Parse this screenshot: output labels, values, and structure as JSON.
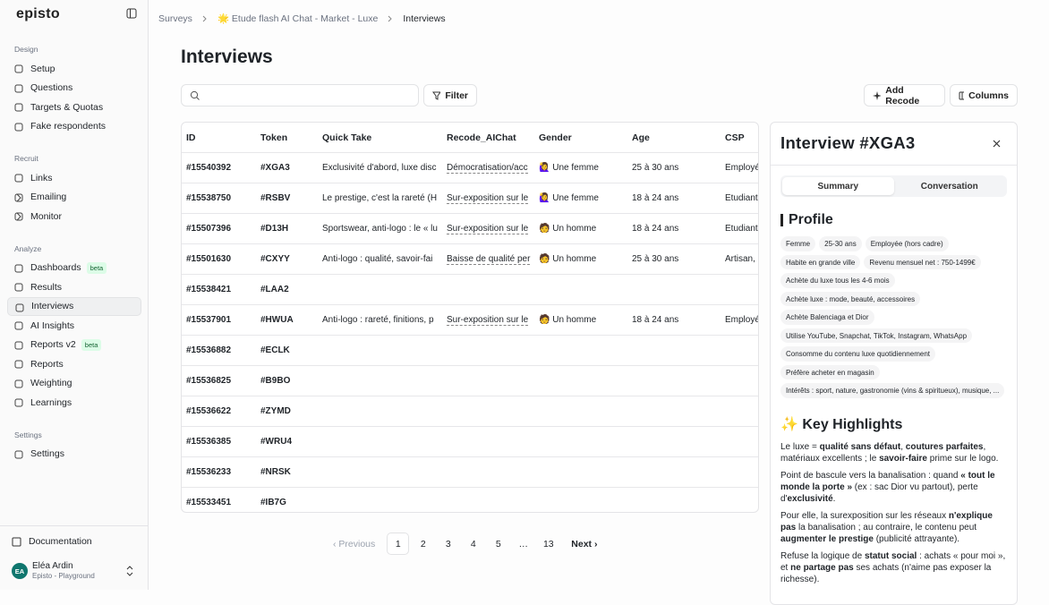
{
  "sidebar": {
    "logo": "episto",
    "sections": [
      {
        "title": "Design",
        "items": [
          {
            "label": "Setup"
          },
          {
            "label": "Questions"
          },
          {
            "label": "Targets & Quotas"
          },
          {
            "label": "Fake respondents"
          }
        ]
      },
      {
        "title": "Recruit",
        "items": [
          {
            "label": "Links"
          },
          {
            "label": "Emailing",
            "submenu": true
          },
          {
            "label": "Monitor",
            "submenu": true
          }
        ]
      },
      {
        "title": "Analyze",
        "items": [
          {
            "label": "Dashboards",
            "badge": "beta"
          },
          {
            "label": "Results"
          },
          {
            "label": "Interviews",
            "active": true
          },
          {
            "label": "AI Insights"
          },
          {
            "label": "Reports v2",
            "badge": "beta"
          },
          {
            "label": "Reports"
          },
          {
            "label": "Weighting"
          },
          {
            "label": "Learnings"
          }
        ]
      },
      {
        "title": "Settings",
        "items": [
          {
            "label": "Settings"
          }
        ]
      }
    ],
    "documentation": "Documentation",
    "user": {
      "initials": "EA",
      "name": "Eléa Ardin",
      "org": "Episto - Playground"
    }
  },
  "breadcrumb": [
    "Surveys",
    "🌟 Etude flash AI Chat - Market - Luxe",
    "Interviews"
  ],
  "page_title": "Interviews",
  "toolbar": {
    "filter": "Filter",
    "add_recode": "Add Recode",
    "columns": "Columns"
  },
  "table": {
    "headers": [
      "ID",
      "Token",
      "Quick Take",
      "Recode_AIChat",
      "Gender",
      "Age",
      "CSP"
    ],
    "rows": [
      {
        "id": "#15540392",
        "token": "#XGA3",
        "quick_take": "Exclusivité d'abord, luxe disc",
        "recode": "Démocratisation/acc",
        "gender": "🙋‍♀️ Une femme",
        "age": "25 à 30 ans",
        "csp": "Employée"
      },
      {
        "id": "#15538750",
        "token": "#RSBV",
        "quick_take": "Le prestige, c'est la rareté (H",
        "recode": "Sur-exposition sur le",
        "gender": "🙋‍♀️ Une femme",
        "age": "18 à 24 ans",
        "csp": "Etudiant"
      },
      {
        "id": "#15507396",
        "token": "#D13H",
        "quick_take": "Sportswear, anti-logo : le « lu",
        "recode": "Sur-exposition sur le",
        "gender": "🧑 Un homme",
        "age": "18 à 24 ans",
        "csp": "Etudiant"
      },
      {
        "id": "#15501630",
        "token": "#CXYY",
        "quick_take": "Anti-logo : qualité, savoir-fai",
        "recode": "Baisse de qualité per",
        "gender": "🧑 Un homme",
        "age": "25 à 30 ans",
        "csp": "Artisan,"
      },
      {
        "id": "#15538421",
        "token": "#LAA2"
      },
      {
        "id": "#15537901",
        "token": "#HWUA",
        "quick_take": "Anti-logo : rareté, finitions, p",
        "recode": "Sur-exposition sur le",
        "gender": "🧑 Un homme",
        "age": "18 à 24 ans",
        "csp": "Employé"
      },
      {
        "id": "#15536882",
        "token": "#ECLK"
      },
      {
        "id": "#15536825",
        "token": "#B9BO"
      },
      {
        "id": "#15536622",
        "token": "#ZYMD"
      },
      {
        "id": "#15536385",
        "token": "#WRU4"
      },
      {
        "id": "#15536233",
        "token": "#NRSK"
      },
      {
        "id": "#15533451",
        "token": "#IB7G"
      }
    ]
  },
  "pagination": {
    "previous": "Previous",
    "pages": [
      "1",
      "2",
      "3",
      "4",
      "5",
      "…",
      "13"
    ],
    "current_index": 0,
    "next": "Next"
  },
  "panel": {
    "title": "Interview #XGA3",
    "tabs": [
      "Summary",
      "Conversation"
    ],
    "active_tab": 0,
    "profile_heading": "Profile",
    "tags": [
      "Femme",
      "25-30 ans",
      "Employée (hors cadre)",
      "Habite en grande ville",
      "Revenu mensuel net : 750-1499€",
      "Achète du luxe tous les 4-6 mois",
      "Achète luxe : mode, beauté, accessoires",
      "Achète Balenciaga et Dior",
      "Utilise YouTube, Snapchat, TikTok, Instagram, WhatsApp",
      "Consomme du contenu luxe quotidiennement",
      "Préfère acheter en magasin",
      "Intérêts : sport, nature, gastronomie (vins & spiritueux), musique, ..."
    ],
    "highlights_heading": "✨ Key Highlights",
    "highlights": [
      [
        {
          "t": "Le luxe = "
        },
        {
          "t": "qualité sans défaut",
          "b": true
        },
        {
          "t": ", "
        },
        {
          "t": "coutures parfaites",
          "b": true
        },
        {
          "t": ", matériaux excellents ; le "
        },
        {
          "t": "savoir-faire",
          "b": true
        },
        {
          "t": " prime sur le logo."
        }
      ],
      [
        {
          "t": "Point de bascule vers la banalisation : quand "
        },
        {
          "t": "« tout le monde la porte »",
          "b": true
        },
        {
          "t": " (ex : sac Dior vu partout), perte d'"
        },
        {
          "t": "exclusivité",
          "b": true
        },
        {
          "t": "."
        }
      ],
      [
        {
          "t": "Pour elle, la surexposition sur les réseaux "
        },
        {
          "t": "n'explique pas",
          "b": true
        },
        {
          "t": " la banalisation ; au contraire, le contenu peut "
        },
        {
          "t": "augmenter le prestige",
          "b": true
        },
        {
          "t": " (publicité attrayante)."
        }
      ],
      [
        {
          "t": "Refuse la logique de "
        },
        {
          "t": "statut social",
          "b": true
        },
        {
          "t": " : achats « pour moi », et "
        },
        {
          "t": "ne partage pas",
          "b": true
        },
        {
          "t": " ses achats (n'aime pas exposer la richesse)."
        }
      ]
    ]
  }
}
